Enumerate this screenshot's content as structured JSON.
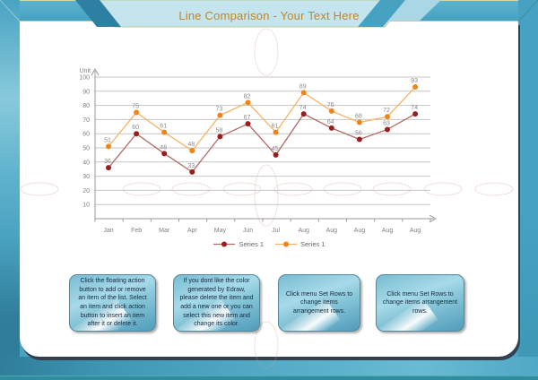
{
  "banner": {
    "title": "Line Comparison - Your Text Here"
  },
  "chart_data": {
    "type": "line",
    "title": "Line Comparison",
    "unit_label": "Unit",
    "xlabel": "",
    "ylabel": "Unit",
    "categories": [
      "Jan",
      "Feb",
      "Mar",
      "Apr",
      "May",
      "Jun",
      "Jul",
      "Aug",
      "Aug",
      "Aug",
      "Aug",
      "Aug"
    ],
    "series": [
      {
        "name": "Series 1",
        "line_color": "#b16b66",
        "marker_color": "#9b1e1e",
        "values": [
          36,
          60,
          46,
          33,
          58,
          67,
          45,
          74,
          64,
          56,
          63,
          74
        ]
      },
      {
        "name": "Series 1",
        "line_color": "#f5b264",
        "marker_color": "#ef8418",
        "values": [
          51,
          75,
          61,
          48,
          73,
          82,
          61,
          89,
          76,
          68,
          72,
          93
        ]
      }
    ],
    "ylim": [
      0,
      100
    ],
    "ytick_step": 10,
    "grid": true,
    "legend_position": "bottom"
  },
  "notes": [
    {
      "text": "Click the floating action button to add or remove an item of the list. Select an item and click action button to insert an item after it or delete it."
    },
    {
      "text": "If you dont like the color generated by Edraw, please delete the item and add a new one or you can select this new item and change its color."
    },
    {
      "text": "Click menu Set Rows to change items arrangement rows."
    },
    {
      "text": "Click menu Set Rows to change items arrangement rows."
    }
  ],
  "colors": {
    "title_text": "#c6861d",
    "frame_blue": "#4aa3c2",
    "frame_dark_teal": "#2e80a2",
    "banner_light": "#c4e4ee",
    "grid_line": "#c6c6c6",
    "axis_line": "#999999",
    "axis_text": "#7f7f7f",
    "note_text": "#16293f"
  }
}
